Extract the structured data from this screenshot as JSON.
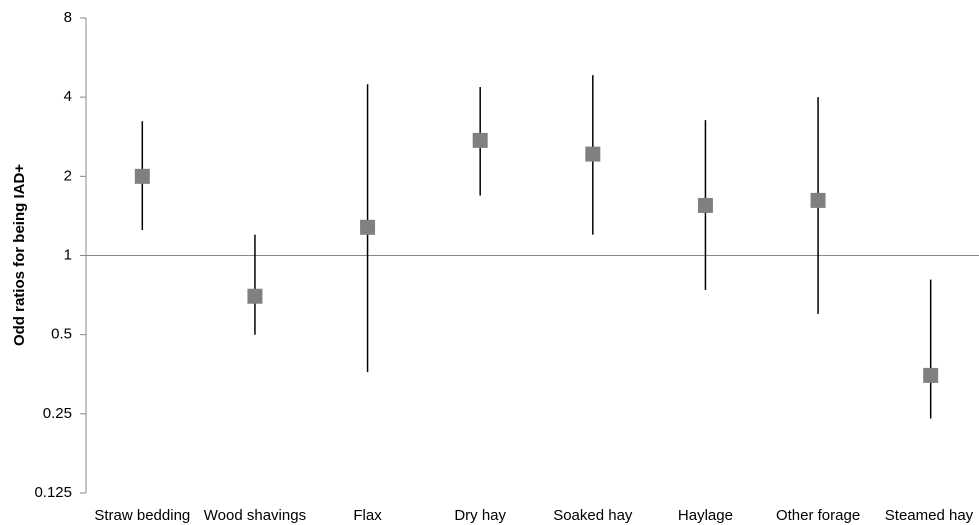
{
  "chart_data": {
    "type": "errorbar",
    "ylabel": "Odd ratios for being IAD+",
    "categories": [
      "Straw bedding",
      "Wood shavings",
      "Flax",
      "Dry hay",
      "Soaked hay",
      "Haylage",
      "Other forage",
      "Steamed hay"
    ],
    "series": [
      {
        "color": "#808080",
        "values": [
          2.0,
          0.7,
          1.28,
          2.74,
          2.43,
          1.55,
          1.62,
          0.35
        ],
        "lower": [
          1.25,
          0.5,
          0.36,
          1.69,
          1.2,
          0.74,
          0.6,
          0.24
        ],
        "upper": [
          3.24,
          1.2,
          4.48,
          4.37,
          4.85,
          3.27,
          4.0,
          0.81
        ]
      }
    ],
    "ylim": [
      0.125,
      8
    ],
    "yticks": [
      0.125,
      0.25,
      0.5,
      1,
      2,
      4,
      8
    ],
    "log_scale": true,
    "reference_line": 1
  }
}
